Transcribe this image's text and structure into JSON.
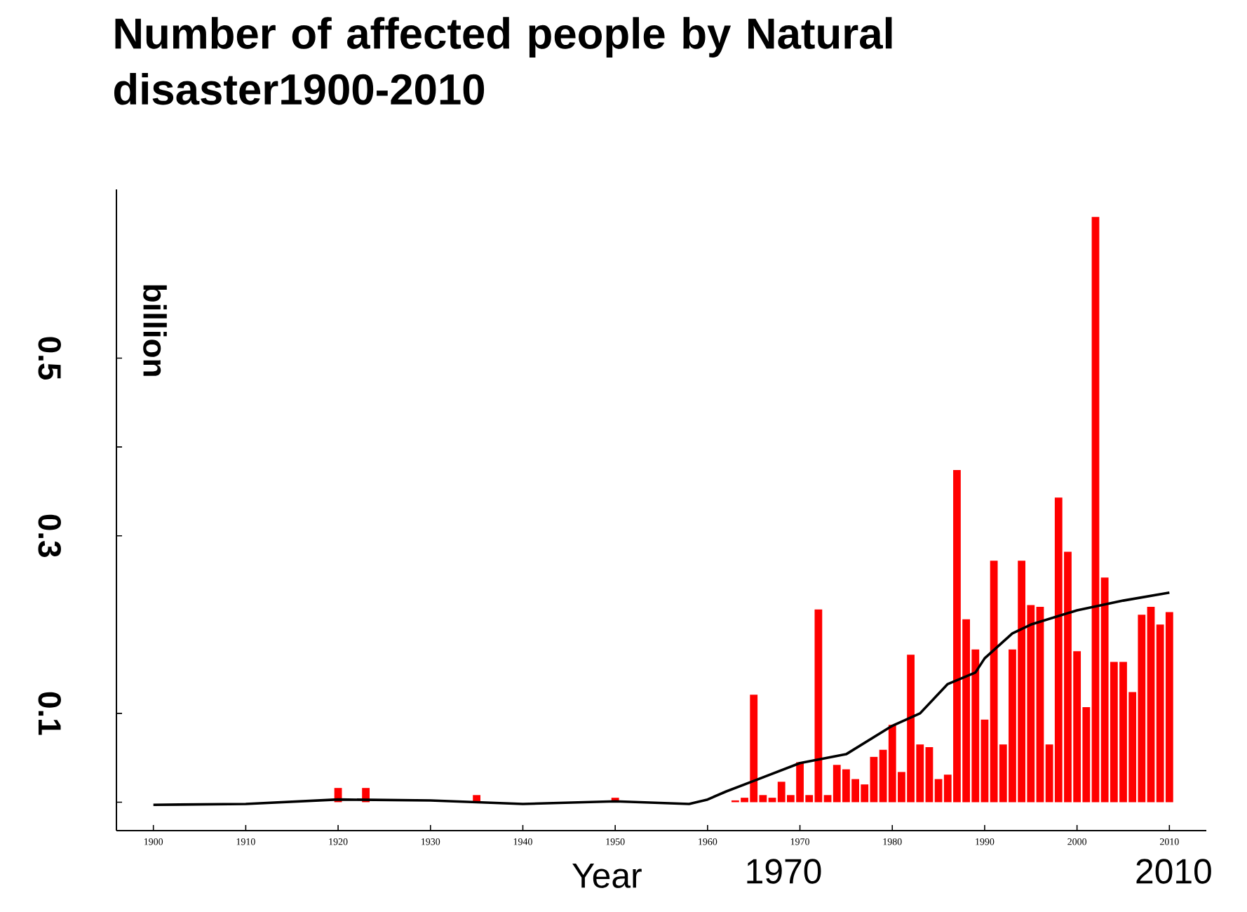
{
  "chart_data": {
    "type": "bar",
    "title": "Number of affected people by Natural disaster1900-2010",
    "xlabel": "Year",
    "ylabel": "billion",
    "annotations": [
      "1970",
      "2010"
    ],
    "xlim": [
      1896,
      2014
    ],
    "ylim": [
      -0.032,
      0.69
    ],
    "xticks": [
      1900,
      1910,
      1920,
      1930,
      1940,
      1950,
      1960,
      1970,
      1980,
      1990,
      2000,
      2010
    ],
    "yticks": [
      {
        "value": 0,
        "label": null
      },
      0.1,
      0.3,
      {
        "value": 0.4,
        "label": null
      },
      0.5
    ],
    "series": [
      {
        "color": "#ff0000",
        "x": [
          1920,
          1923,
          1935,
          1950,
          1963,
          1964,
          1965,
          1966,
          1967,
          1968,
          1969,
          1970,
          1971,
          1972,
          1973,
          1974,
          1975,
          1976,
          1977,
          1978,
          1979,
          1980,
          1981,
          1982,
          1983,
          1984,
          1985,
          1986,
          1987,
          1988,
          1989,
          1990,
          1991,
          1992,
          1993,
          1994,
          1995,
          1996,
          1997,
          1998,
          1999,
          2000,
          2001,
          2002,
          2003,
          2004,
          2005,
          2006,
          2007,
          2008,
          2009,
          2010
        ],
        "values": [
          0.016,
          0.016,
          0.008,
          0.005,
          0.002,
          0.005,
          0.121,
          0.008,
          0.005,
          0.023,
          0.008,
          0.045,
          0.008,
          0.217,
          0.008,
          0.042,
          0.037,
          0.026,
          0.02,
          0.051,
          0.059,
          0.087,
          0.034,
          0.166,
          0.065,
          0.062,
          0.026,
          0.031,
          0.374,
          0.206,
          0.172,
          0.093,
          0.272,
          0.065,
          0.172,
          0.272,
          0.222,
          0.22,
          0.065,
          0.343,
          0.282,
          0.17,
          0.107,
          0.659,
          0.253,
          0.158,
          0.158,
          0.124,
          0.211,
          0.22,
          0.2,
          0.214
        ]
      },
      {
        "type": "line",
        "color": "#000000",
        "x": [
          1900,
          1910,
          1920,
          1930,
          1940,
          1950,
          1958,
          1960,
          1962,
          1965,
          1970,
          1975,
          1980,
          1983,
          1986,
          1989,
          1990,
          1993,
          1995,
          2000,
          2005,
          2010
        ],
        "values": [
          -0.003,
          -0.002,
          0.003,
          0.002,
          -0.002,
          0.001,
          -0.002,
          0.003,
          0.012,
          0.024,
          0.044,
          0.054,
          0.086,
          0.1,
          0.133,
          0.146,
          0.162,
          0.19,
          0.2,
          0.216,
          0.227,
          0.236
        ]
      }
    ]
  }
}
